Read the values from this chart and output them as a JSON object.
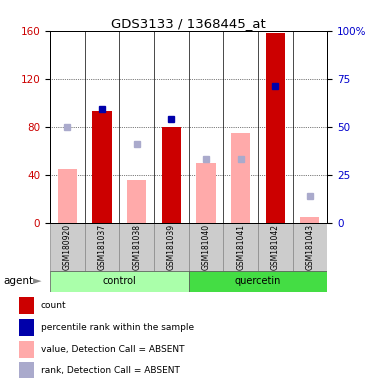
{
  "title": "GDS3133 / 1368445_at",
  "samples": [
    "GSM180920",
    "GSM181037",
    "GSM181038",
    "GSM181039",
    "GSM181040",
    "GSM181041",
    "GSM181042",
    "GSM181043"
  ],
  "group_colors": [
    "#aaffaa",
    "#44dd44"
  ],
  "bar_header_color": "#cccccc",
  "red_bars": [
    null,
    93,
    null,
    80,
    null,
    null,
    158,
    null
  ],
  "blue_squares_right": [
    null,
    59,
    null,
    54,
    null,
    null,
    71,
    null
  ],
  "pink_bars": [
    45,
    null,
    36,
    null,
    50,
    75,
    null,
    5
  ],
  "lavender_squares_right": [
    50,
    null,
    41,
    null,
    33,
    33,
    null,
    14
  ],
  "left_ylim": [
    0,
    160
  ],
  "left_yticks": [
    0,
    40,
    80,
    120,
    160
  ],
  "right_ylim": [
    0,
    100
  ],
  "right_yticks": [
    0,
    25,
    50,
    75,
    100
  ],
  "right_yticklabels": [
    "0",
    "25",
    "50",
    "75",
    "100%"
  ],
  "left_axis_color": "#cc0000",
  "right_axis_color": "#0000cc",
  "red_bar_color": "#cc0000",
  "blue_sq_color": "#0000aa",
  "pink_bar_color": "#ffaaaa",
  "lav_sq_color": "#aaaacc",
  "bar_width": 0.55,
  "legend_labels": [
    "count",
    "percentile rank within the sample",
    "value, Detection Call = ABSENT",
    "rank, Detection Call = ABSENT"
  ],
  "legend_colors": [
    "#cc0000",
    "#0000aa",
    "#ffaaaa",
    "#aaaacc"
  ]
}
